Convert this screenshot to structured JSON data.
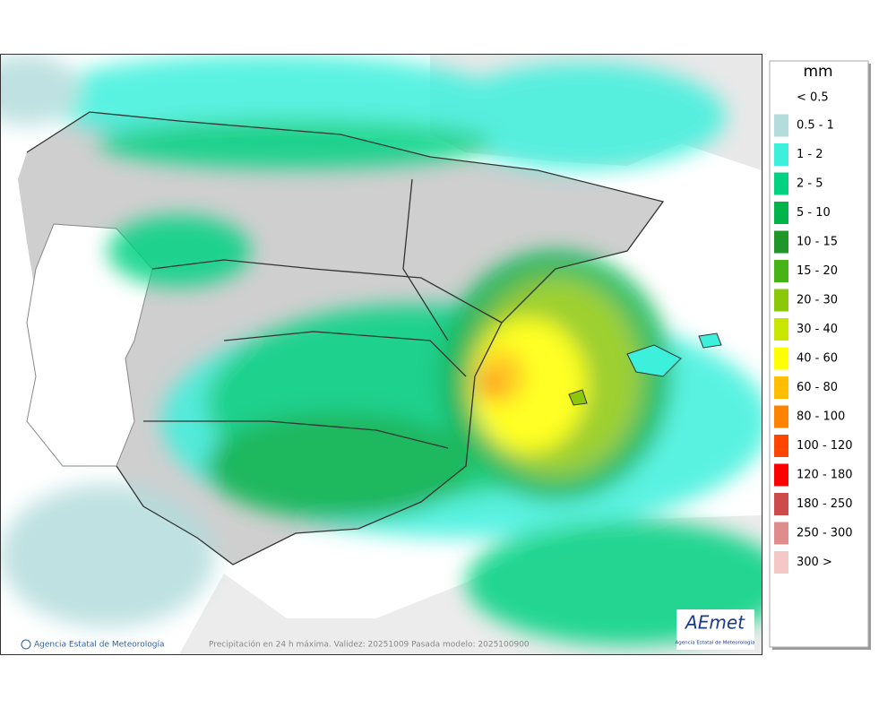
{
  "map": {
    "footer_left": "Agencia Estatal de Meteorología",
    "footer_center": "Precipitación en 24 h máxima. Validez: 20251009 Pasada modelo: 2025100900",
    "logo": {
      "name": "AEmet",
      "subtitle": "Agencia Estatal de Meteorología"
    }
  },
  "legend": {
    "title": "mm",
    "below": "< 0.5",
    "items": [
      {
        "label": "0.5 - 1",
        "color": "#b4dcdc"
      },
      {
        "label": "1 - 2",
        "color": "#3cf0dc"
      },
      {
        "label": "2 - 5",
        "color": "#00d282"
      },
      {
        "label": "5 - 10",
        "color": "#00b44b"
      },
      {
        "label": "10 - 15",
        "color": "#1e9628"
      },
      {
        "label": "15 - 20",
        "color": "#46b414"
      },
      {
        "label": "20 - 30",
        "color": "#8cc80a"
      },
      {
        "label": "30 - 40",
        "color": "#c8e600"
      },
      {
        "label": "40 - 60",
        "color": "#ffff00"
      },
      {
        "label": "60 - 80",
        "color": "#ffbe00"
      },
      {
        "label": "80 - 100",
        "color": "#ff8200"
      },
      {
        "label": "100 - 120",
        "color": "#ff4600"
      },
      {
        "label": "120 - 180",
        "color": "#ff0000"
      },
      {
        "label": "180 - 250",
        "color": "#cd4b4b"
      },
      {
        "label": "250 - 300",
        "color": "#e08c8c"
      },
      {
        "label": "300 >",
        "color": "#f5c8c8"
      }
    ]
  }
}
